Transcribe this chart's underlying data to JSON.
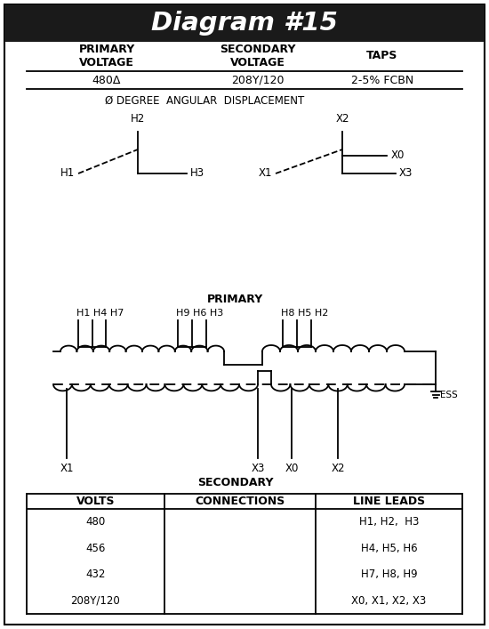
{
  "title": "Diagram #15",
  "title_bg": "#1a1a1a",
  "title_color": "#ffffff",
  "bg_color": "#ffffff",
  "border_color": "#000000",
  "primary_voltage": "480Δ",
  "secondary_voltage": "208Y/120",
  "taps": "2-5% FCBN",
  "angular_disp": "Ø DEGREE  ANGULAR  DISPLACEMENT",
  "table_headers": [
    "VOLTS",
    "CONNECTIONS",
    "LINE LEADS"
  ],
  "table_rows": [
    [
      "480",
      "",
      "H1, H2,  H3"
    ],
    [
      "456",
      "",
      "H4, H5, H6"
    ],
    [
      "432",
      "",
      "H7, H8, H9"
    ],
    [
      "208Y/120",
      "",
      "X0, X1, X2, X3"
    ]
  ]
}
